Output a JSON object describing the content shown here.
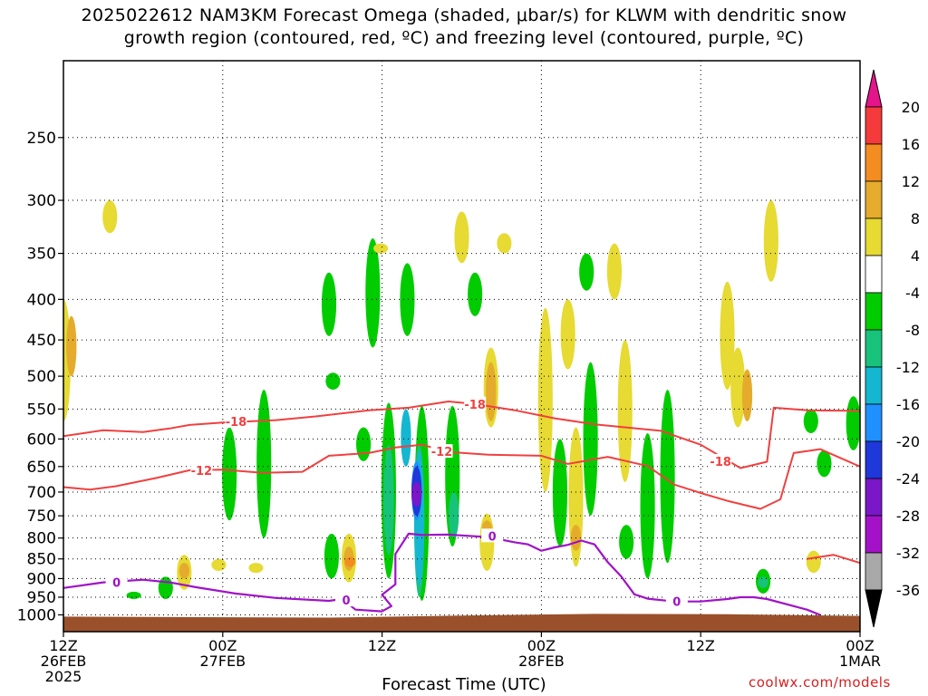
{
  "chart_data": {
    "type": "heatmap",
    "title_line1": "2025022612 NAM3KM Forecast Omega (shaded, μbar/s) for KLWM with dendritic snow",
    "title_line2": "growth region (contoured, red, ºC) and freezing level (contoured, purple, ºC)",
    "xlabel": "Forecast Time (UTC)",
    "credit": "coolwx.com/models",
    "y_axis_scale": "log-pressure (hPa), inverted",
    "ylim": [
      1050,
      200
    ],
    "y_ticks": [
      250,
      300,
      350,
      400,
      450,
      500,
      550,
      600,
      650,
      700,
      750,
      800,
      850,
      900,
      950,
      1000
    ],
    "xlim_hours": [
      0,
      60
    ],
    "x_ticks": [
      {
        "hour": 0,
        "lines": [
          "12Z",
          "26FEB",
          "2025"
        ]
      },
      {
        "hour": 12,
        "lines": [
          "00Z",
          "27FEB"
        ]
      },
      {
        "hour": 24,
        "lines": [
          "12Z"
        ]
      },
      {
        "hour": 36,
        "lines": [
          "00Z",
          "28FEB"
        ]
      },
      {
        "hour": 48,
        "lines": [
          "12Z"
        ]
      },
      {
        "hour": 60,
        "lines": [
          "00Z",
          "1MAR"
        ]
      }
    ],
    "grid": "dotted",
    "colorbar": {
      "labels": [
        "20",
        "16",
        "12",
        "8",
        "4",
        "-4",
        "-8",
        "-12",
        "-16",
        "-20",
        "-24",
        "-28",
        "-32",
        "-36"
      ],
      "colors": [
        "#e4148a",
        "#f43a3a",
        "#f38c21",
        "#e5ab2c",
        "#e6da33",
        "#ffffff",
        "#00cc00",
        "#17c37a",
        "#14b7cf",
        "#1e90ff",
        "#1f38d9",
        "#7a17c8",
        "#a412c8",
        "#a8a8a8",
        "#000000"
      ]
    },
    "omega_areas": [
      {
        "level": 4,
        "color": "#e6da33",
        "t": 0,
        "p": [
          570,
          400
        ]
      },
      {
        "level": 8,
        "color": "#e5ab2c",
        "t": 0.6,
        "p": [
          500,
          420
        ]
      },
      {
        "level": 4,
        "color": "#e6da33",
        "t": 3.5,
        "p": [
          300,
          330
        ]
      },
      {
        "level": -4,
        "color": "#00cc00",
        "t": 5.3,
        "p": [
          935,
          955
        ]
      },
      {
        "level": -4,
        "color": "#00cc00",
        "t": 7.7,
        "p": [
          895,
          955
        ]
      },
      {
        "level": 4,
        "color": "#e6da33",
        "t": 9.1,
        "p": [
          840,
          930
        ]
      },
      {
        "level": 8,
        "color": "#e5ab2c",
        "t": 9.1,
        "p": [
          860,
          900
        ]
      },
      {
        "level": 4,
        "color": "#e6da33",
        "t": 11.7,
        "p": [
          850,
          880
        ]
      },
      {
        "level": -4,
        "color": "#00cc00",
        "t": 12.5,
        "p": [
          580,
          760
        ]
      },
      {
        "level": 4,
        "color": "#e6da33",
        "t": 14.5,
        "p": [
          860,
          885
        ]
      },
      {
        "level": -4,
        "color": "#00cc00",
        "t": 15.1,
        "p": [
          520,
          800
        ]
      },
      {
        "level": -4,
        "color": "#00cc00",
        "t": 20.0,
        "p": [
          370,
          445
        ]
      },
      {
        "level": -4,
        "color": "#00cc00",
        "t": 20.3,
        "p": [
          495,
          520
        ]
      },
      {
        "level": -4,
        "color": "#00cc00",
        "t": 20.2,
        "p": [
          790,
          900
        ]
      },
      {
        "level": 4,
        "color": "#e6da33",
        "t": 21.5,
        "p": [
          790,
          910
        ]
      },
      {
        "level": 8,
        "color": "#e5ab2c",
        "t": 21.5,
        "p": [
          820,
          880
        ]
      },
      {
        "level": 12,
        "color": "#f38c21",
        "t": 21.6,
        "p": [
          845,
          870
        ]
      },
      {
        "level": -4,
        "color": "#00cc00",
        "t": 22.6,
        "p": [
          580,
          640
        ]
      },
      {
        "level": -4,
        "color": "#00cc00",
        "t": 23.3,
        "p": [
          335,
          460
        ]
      },
      {
        "level": 4,
        "color": "#e6da33",
        "t": 23.9,
        "p": [
          340,
          350
        ]
      },
      {
        "level": -4,
        "color": "#00cc00",
        "t": 24.5,
        "p": [
          540,
          900
        ]
      },
      {
        "level": -8,
        "color": "#17c37a",
        "t": 24.5,
        "p": [
          610,
          840
        ]
      },
      {
        "level": -12,
        "color": "#14b7cf",
        "t": 25.8,
        "p": [
          550,
          650
        ]
      },
      {
        "level": -4,
        "color": "#00cc00",
        "t": 25.9,
        "p": [
          360,
          445
        ]
      },
      {
        "level": -4,
        "color": "#00cc00",
        "t": 27.0,
        "p": [
          545,
          960
        ]
      },
      {
        "level": -8,
        "color": "#17c37a",
        "t": 26.8,
        "p": [
          610,
          950
        ]
      },
      {
        "level": -12,
        "color": "#14b7cf",
        "t": 26.8,
        "p": [
          620,
          920
        ]
      },
      {
        "level": -16,
        "color": "#1e90ff",
        "t": 26.6,
        "p": [
          640,
          760
        ]
      },
      {
        "level": -20,
        "color": "#1f38d9",
        "t": 26.6,
        "p": [
          650,
          750
        ]
      },
      {
        "level": -24,
        "color": "#7a17c8",
        "t": 26.6,
        "p": [
          680,
          730
        ]
      },
      {
        "level": -4,
        "color": "#00cc00",
        "t": 29.3,
        "p": [
          545,
          820
        ]
      },
      {
        "level": -8,
        "color": "#17c37a",
        "t": 29.4,
        "p": [
          700,
          800
        ]
      },
      {
        "level": 4,
        "color": "#e6da33",
        "t": 30.0,
        "p": [
          310,
          360
        ]
      },
      {
        "level": -4,
        "color": "#00cc00",
        "t": 31.0,
        "p": [
          370,
          420
        ]
      },
      {
        "level": 4,
        "color": "#e6da33",
        "t": 31.9,
        "p": [
          745,
          880
        ]
      },
      {
        "level": 4,
        "color": "#e6da33",
        "t": 32.2,
        "p": [
          460,
          580
        ]
      },
      {
        "level": 8,
        "color": "#e5ab2c",
        "t": 32.2,
        "p": [
          480,
          570
        ]
      },
      {
        "level": 8,
        "color": "#e5ab2c",
        "t": 31.9,
        "p": [
          760,
          800
        ]
      },
      {
        "level": 4,
        "color": "#e6da33",
        "t": 33.2,
        "p": [
          330,
          350
        ]
      },
      {
        "level": 4,
        "color": "#e6da33",
        "t": 36.3,
        "p": [
          410,
          700
        ]
      },
      {
        "level": 4,
        "color": "#e6da33",
        "t": 38.0,
        "p": [
          400,
          490
        ]
      },
      {
        "level": 4,
        "color": "#e6da33",
        "t": 38.6,
        "p": [
          580,
          870
        ]
      },
      {
        "level": 8,
        "color": "#e5ab2c",
        "t": 38.6,
        "p": [
          770,
          830
        ]
      },
      {
        "level": -4,
        "color": "#00cc00",
        "t": 37.4,
        "p": [
          600,
          820
        ]
      },
      {
        "level": -4,
        "color": "#00cc00",
        "t": 39.4,
        "p": [
          350,
          390
        ]
      },
      {
        "level": -4,
        "color": "#00cc00",
        "t": 39.7,
        "p": [
          480,
          750
        ]
      },
      {
        "level": 4,
        "color": "#e6da33",
        "t": 41.5,
        "p": [
          340,
          400
        ]
      },
      {
        "level": 4,
        "color": "#e6da33",
        "t": 42.3,
        "p": [
          450,
          680
        ]
      },
      {
        "level": -4,
        "color": "#00cc00",
        "t": 42.4,
        "p": [
          770,
          850
        ]
      },
      {
        "level": -4,
        "color": "#00cc00",
        "t": 44.0,
        "p": [
          590,
          900
        ]
      },
      {
        "level": -4,
        "color": "#00cc00",
        "t": 45.5,
        "p": [
          520,
          860
        ]
      },
      {
        "level": 4,
        "color": "#e6da33",
        "t": 50.0,
        "p": [
          380,
          520
        ]
      },
      {
        "level": 4,
        "color": "#e6da33",
        "t": 50.8,
        "p": [
          460,
          580
        ]
      },
      {
        "level": 8,
        "color": "#e5ab2c",
        "t": 51.5,
        "p": [
          490,
          570
        ]
      },
      {
        "level": 4,
        "color": "#e6da33",
        "t": 53.3,
        "p": [
          300,
          380
        ]
      },
      {
        "level": -4,
        "color": "#00cc00",
        "t": 52.7,
        "p": [
          875,
          940
        ]
      },
      {
        "level": -8,
        "color": "#17c37a",
        "t": 52.7,
        "p": [
          895,
          925
        ]
      },
      {
        "level": -4,
        "color": "#00cc00",
        "t": 56.3,
        "p": [
          550,
          590
        ]
      },
      {
        "level": -4,
        "color": "#00cc00",
        "t": 57.3,
        "p": [
          620,
          670
        ]
      },
      {
        "level": 4,
        "color": "#e6da33",
        "t": 56.5,
        "p": [
          830,
          885
        ]
      },
      {
        "level": -4,
        "color": "#00cc00",
        "t": 59.5,
        "p": [
          530,
          620
        ]
      }
    ],
    "dgz_lines": [
      {
        "label": "-18",
        "color": "#f04040",
        "points": [
          [
            0,
            595
          ],
          [
            3,
            585
          ],
          [
            6,
            588
          ],
          [
            8,
            582
          ],
          [
            9.5,
            576
          ],
          [
            12,
            572
          ],
          [
            16,
            568
          ],
          [
            19,
            562
          ],
          [
            23,
            552
          ],
          [
            26,
            548
          ],
          [
            29,
            538
          ],
          [
            31,
            542
          ],
          [
            34,
            552
          ],
          [
            37,
            565
          ],
          [
            40,
            575
          ],
          [
            45,
            586
          ],
          [
            48,
            610
          ],
          [
            51,
            653
          ],
          [
            53,
            641
          ],
          [
            53.5,
            548
          ],
          [
            56,
            552
          ],
          [
            60,
            553
          ]
        ]
      },
      {
        "label": "-12",
        "color": "#f04040",
        "points": [
          [
            0,
            690
          ],
          [
            2,
            695
          ],
          [
            4,
            688
          ],
          [
            7,
            672
          ],
          [
            9.5,
            657
          ],
          [
            12,
            656
          ],
          [
            15,
            662
          ],
          [
            18,
            660
          ],
          [
            20,
            630
          ],
          [
            23,
            625
          ],
          [
            25,
            615
          ],
          [
            27,
            610
          ],
          [
            29,
            623
          ],
          [
            32,
            628
          ],
          [
            36,
            630
          ],
          [
            38,
            645
          ],
          [
            41,
            632
          ],
          [
            44,
            649
          ],
          [
            46,
            685
          ],
          [
            48,
            702
          ],
          [
            50,
            718
          ],
          [
            52.5,
            735
          ],
          [
            54,
            715
          ],
          [
            55,
            625
          ],
          [
            57,
            618
          ],
          [
            60,
            650
          ]
        ]
      },
      {
        "label": "-12",
        "color": "#f04040",
        "points": [
          [
            56,
            850
          ],
          [
            58,
            840
          ],
          [
            60,
            860
          ]
        ]
      }
    ],
    "freezing_line": {
      "label": "0",
      "color": "#a012c8",
      "points": [
        [
          0,
          925
        ],
        [
          3,
          910
        ],
        [
          6,
          903
        ],
        [
          8,
          910
        ],
        [
          10,
          923
        ],
        [
          13,
          940
        ],
        [
          16,
          952
        ],
        [
          20,
          960
        ],
        [
          21,
          955
        ],
        [
          22,
          985
        ],
        [
          24,
          990
        ],
        [
          24.7,
          975
        ],
        [
          24,
          943
        ],
        [
          25,
          915
        ],
        [
          25,
          838
        ],
        [
          26,
          790
        ],
        [
          27,
          793
        ],
        [
          29,
          792
        ],
        [
          32,
          798
        ],
        [
          34,
          810
        ],
        [
          35,
          815
        ],
        [
          36,
          830
        ],
        [
          37,
          822
        ],
        [
          38,
          816
        ],
        [
          39,
          806
        ],
        [
          40,
          815
        ],
        [
          41,
          858
        ],
        [
          42,
          894
        ],
        [
          43,
          942
        ],
        [
          44,
          954
        ],
        [
          46,
          962
        ],
        [
          48,
          962
        ],
        [
          50,
          955
        ],
        [
          51,
          950
        ],
        [
          52,
          950
        ],
        [
          53,
          955
        ],
        [
          55,
          975
        ],
        [
          56,
          985
        ],
        [
          57,
          1000
        ]
      ]
    },
    "terrain_color": "#9a512b"
  }
}
